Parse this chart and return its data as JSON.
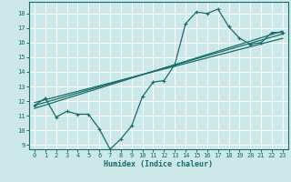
{
  "xlabel": "Humidex (Indice chaleur)",
  "bg_color": "#cce8e8",
  "grid_color": "#ffffff",
  "line_color": "#1a6b6b",
  "xlim": [
    -0.5,
    23.5
  ],
  "ylim": [
    8.7,
    18.8
  ],
  "xticks": [
    0,
    1,
    2,
    3,
    4,
    5,
    6,
    7,
    8,
    9,
    10,
    11,
    12,
    13,
    14,
    15,
    16,
    17,
    18,
    19,
    20,
    21,
    22,
    23
  ],
  "yticks": [
    9,
    10,
    11,
    12,
    13,
    14,
    15,
    16,
    17,
    18
  ],
  "series1_x": [
    0,
    1,
    2,
    3,
    4,
    5,
    6,
    7,
    8,
    9,
    10,
    11,
    12,
    13,
    14,
    15,
    16,
    17,
    18,
    19,
    20,
    21,
    22,
    23
  ],
  "series1_y": [
    11.7,
    12.2,
    10.9,
    11.3,
    11.1,
    11.1,
    10.1,
    8.7,
    9.4,
    10.3,
    12.3,
    13.3,
    13.4,
    14.5,
    17.3,
    18.1,
    18.0,
    18.3,
    17.1,
    16.3,
    15.9,
    16.0,
    16.7,
    16.7
  ],
  "trend1_x": [
    0,
    23
  ],
  "trend1_y": [
    11.7,
    16.6
  ],
  "trend2_x": [
    0,
    23
  ],
  "trend2_y": [
    11.5,
    16.8
  ],
  "trend3_x": [
    0,
    23
  ],
  "trend3_y": [
    11.9,
    16.3
  ]
}
